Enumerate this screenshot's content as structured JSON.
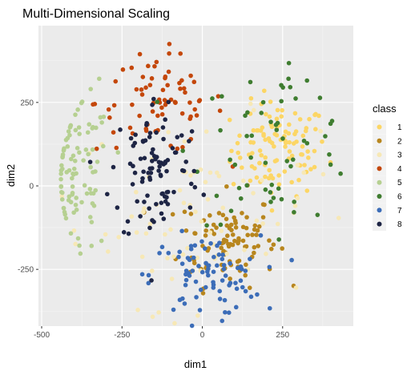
{
  "chart_data": {
    "type": "scatter",
    "title": "Multi-Dimensional Scaling",
    "xlabel": "dim1",
    "ylabel": "dim2",
    "xlim": [
      -510,
      470
    ],
    "ylim": [
      -420,
      480
    ],
    "x_ticks": [
      -500,
      -250,
      0,
      250
    ],
    "x_tick_labels": [
      "-500",
      "-250",
      "0",
      "250"
    ],
    "y_ticks": [
      -250,
      0,
      250
    ],
    "y_tick_labels": [
      "-250",
      "0",
      "250"
    ],
    "grid": true,
    "legend": {
      "title": "class",
      "position": "right"
    },
    "series": [
      {
        "name": "1",
        "color": "#FCD665",
        "n": 110,
        "cx": 240,
        "cy": 110,
        "sx": 75,
        "sy": 70
      },
      {
        "name": "2",
        "color": "#B8861E",
        "n": 100,
        "cx": 80,
        "cy": -160,
        "sx": 75,
        "sy": 70
      },
      {
        "name": "3",
        "color": "#F7E8B5",
        "n": 80,
        "cx": -20,
        "cy": -80,
        "sx": 190,
        "sy": 140
      },
      {
        "name": "4",
        "color": "#C4470A",
        "n": 75,
        "cx": -130,
        "cy": 250,
        "sx": 100,
        "sy": 75
      },
      {
        "name": "5",
        "color": "#B6D091",
        "n": 95,
        "cx": -395,
        "cy": 20,
        "sx": 55,
        "sy": 120
      },
      {
        "name": "6",
        "color": "#3F7D30",
        "n": 60,
        "cx": 230,
        "cy": 130,
        "sx": 130,
        "sy": 120
      },
      {
        "name": "7",
        "color": "#3C6DB8",
        "n": 85,
        "cx": 10,
        "cy": -270,
        "sx": 85,
        "sy": 60
      },
      {
        "name": "8",
        "color": "#1E2545",
        "n": 95,
        "cx": -145,
        "cy": 45,
        "sx": 70,
        "sy": 115
      }
    ]
  }
}
